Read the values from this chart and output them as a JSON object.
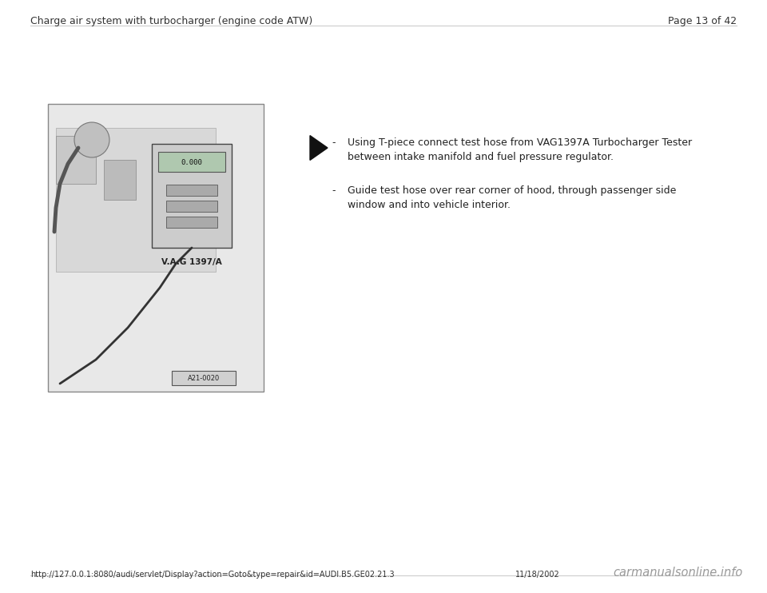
{
  "bg_color": "#ffffff",
  "header_left": "Charge air system with turbocharger (engine code ATW)",
  "header_right": "Page 13 of 42",
  "header_fontsize": 9.0,
  "header_color": "#333333",
  "footer_url": "http://127.0.0.1:8080/audi/servlet/Display?action=Goto&type=repair&id=AUDI.B5.GE02.21.3",
  "footer_date": "11/18/2002",
  "footer_watermark": "carmanualsonline.info",
  "footer_fontsize": 7.0,
  "bullet_points": [
    "Using T-piece connect test hose from VAG1397A Turbocharger Tester\nbetween intake manifold and fuel pressure regulator.",
    "Guide test hose over rear corner of hood, through passenger side\nwindow and into vehicle interior."
  ],
  "bullet_fontsize": 9.0,
  "bullet_color": "#222222",
  "image_label": "A21-0020",
  "vag_label": "V.A.G 1397/A",
  "line_color": "#aaaaaa"
}
